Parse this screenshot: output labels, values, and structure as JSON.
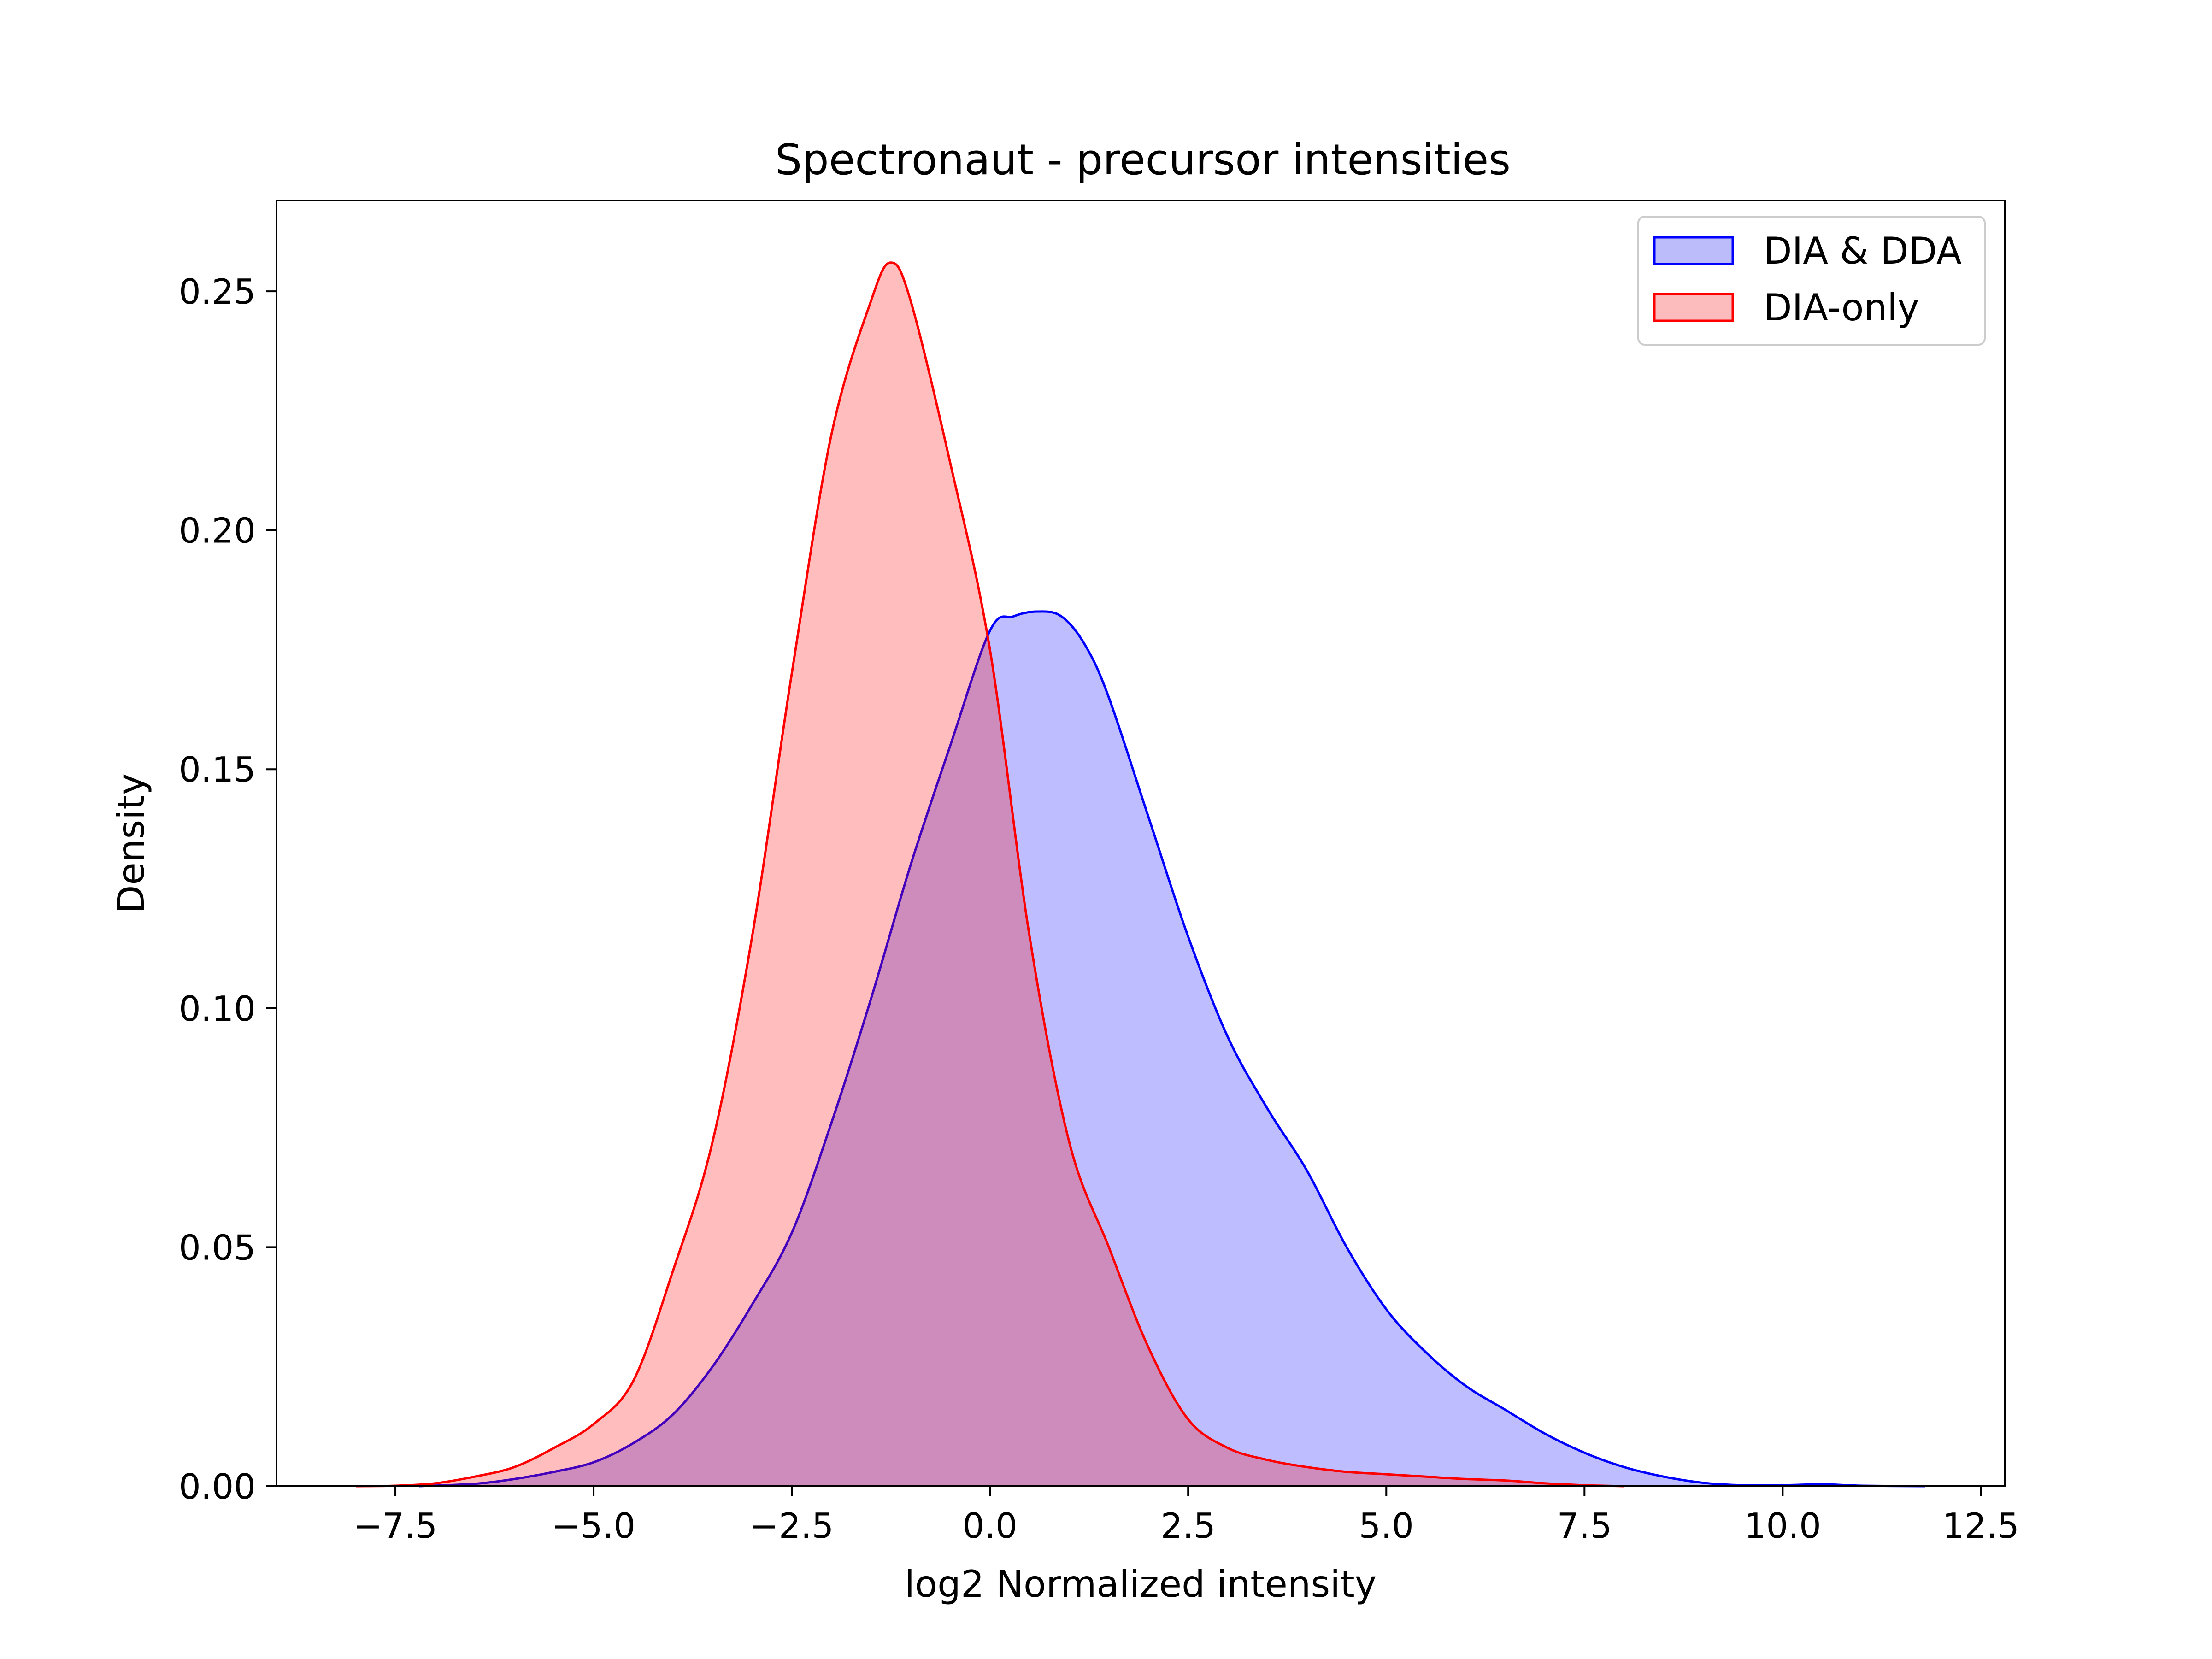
{
  "chart_data": {
    "type": "area",
    "title": "Spectronaut - precursor intensities",
    "xlabel": "log2 Normalized intensity",
    "ylabel": "Density",
    "xlim": [
      -9.0,
      12.8
    ],
    "ylim": [
      0.0,
      0.269
    ],
    "xticks": [
      -7.5,
      -5.0,
      -2.5,
      0.0,
      2.5,
      5.0,
      7.5,
      10.0,
      12.5
    ],
    "xtick_labels": [
      "−7.5",
      "−5.0",
      "−2.5",
      "0.0",
      "2.5",
      "5.0",
      "7.5",
      "10.0",
      "12.5"
    ],
    "yticks": [
      0.0,
      0.05,
      0.1,
      0.15,
      0.2,
      0.25
    ],
    "ytick_labels": [
      "0.00",
      "0.05",
      "0.10",
      "0.15",
      "0.20",
      "0.25"
    ],
    "grid": false,
    "legend_position": "top-right",
    "series": [
      {
        "name": "DIA & DDA",
        "color": "#0000ff",
        "fill": "#bcbcfb",
        "x": [
          -7.2,
          -6.5,
          -6.0,
          -5.5,
          -5.0,
          -4.5,
          -4.0,
          -3.5,
          -3.0,
          -2.5,
          -2.0,
          -1.5,
          -1.0,
          -0.5,
          0.0,
          0.3,
          0.6,
          0.9,
          1.2,
          1.5,
          2.0,
          2.5,
          3.0,
          3.5,
          4.0,
          4.5,
          5.0,
          5.5,
          6.0,
          6.5,
          7.0,
          7.5,
          8.0,
          8.5,
          9.0,
          9.5,
          10.0,
          10.5,
          11.0,
          11.8
        ],
        "y": [
          0.0,
          0.0005,
          0.0015,
          0.003,
          0.005,
          0.009,
          0.015,
          0.025,
          0.038,
          0.053,
          0.076,
          0.102,
          0.13,
          0.155,
          0.179,
          0.182,
          0.183,
          0.182,
          0.176,
          0.165,
          0.14,
          0.115,
          0.094,
          0.079,
          0.066,
          0.05,
          0.037,
          0.028,
          0.021,
          0.016,
          0.011,
          0.007,
          0.004,
          0.002,
          0.0007,
          0.0002,
          0.0002,
          0.0004,
          0.0001,
          0.0
        ]
      },
      {
        "name": "DIA-only",
        "color": "#ff0000",
        "fill": "#fcbcbe",
        "x": [
          -8.0,
          -7.5,
          -7.0,
          -6.5,
          -6.0,
          -5.5,
          -5.0,
          -4.5,
          -4.0,
          -3.5,
          -3.0,
          -2.5,
          -2.0,
          -1.5,
          -1.25,
          -1.0,
          -0.5,
          0.0,
          0.5,
          1.0,
          1.5,
          2.0,
          2.5,
          3.0,
          3.5,
          4.0,
          4.5,
          5.0,
          5.5,
          6.0,
          6.5,
          7.0,
          7.5,
          8.0
        ],
        "y": [
          0.0,
          0.0001,
          0.0006,
          0.002,
          0.004,
          0.008,
          0.013,
          0.022,
          0.045,
          0.072,
          0.115,
          0.17,
          0.22,
          0.248,
          0.256,
          0.248,
          0.214,
          0.175,
          0.115,
          0.072,
          0.05,
          0.029,
          0.014,
          0.008,
          0.0055,
          0.004,
          0.003,
          0.0025,
          0.002,
          0.0015,
          0.0012,
          0.0006,
          0.0002,
          0.0
        ]
      }
    ]
  }
}
